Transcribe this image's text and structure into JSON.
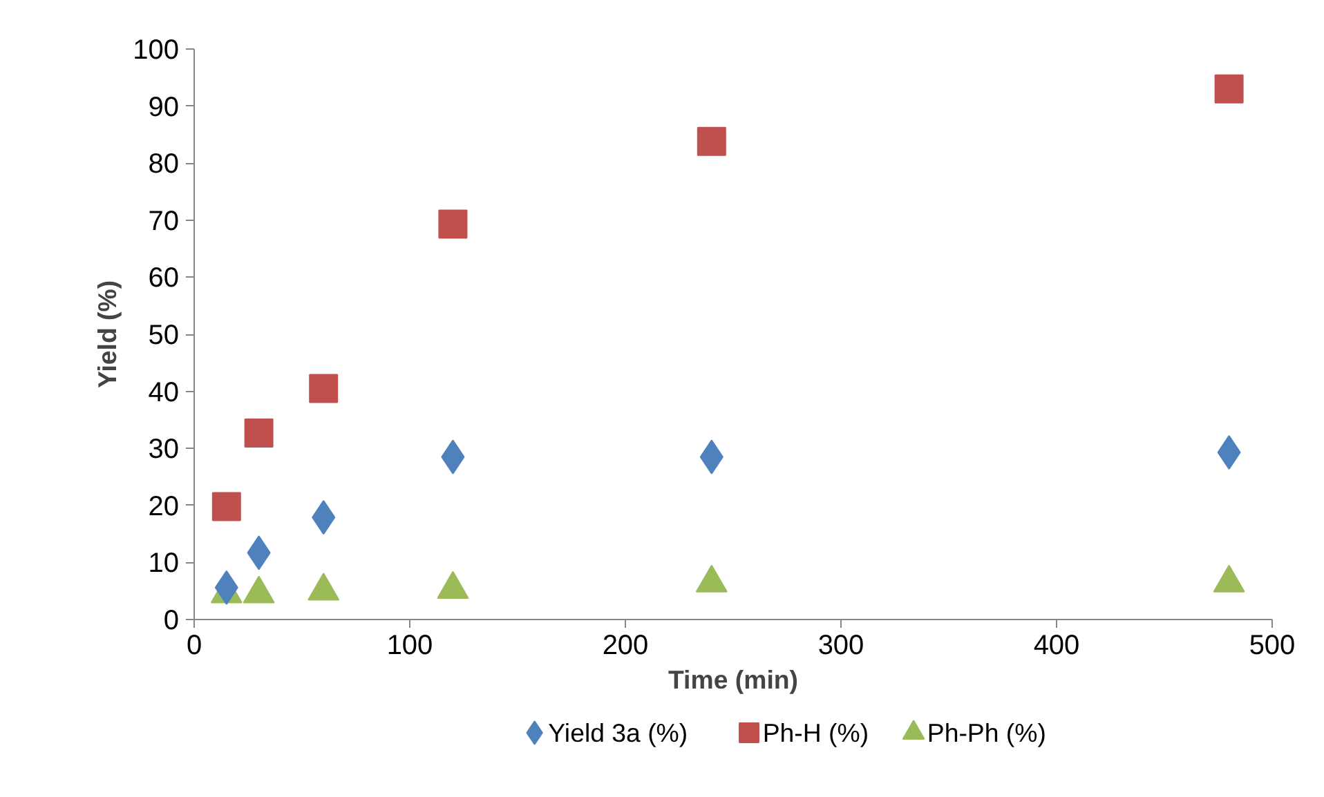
{
  "chart_data": {
    "type": "scatter",
    "xlabel": "Time (min)",
    "ylabel": "Yield (%)",
    "x": [
      15,
      30,
      60,
      120,
      240,
      480
    ],
    "series": [
      {
        "name": "Yield 3a (%)",
        "color": "#4f81bd",
        "marker": "diamond",
        "values": [
          5.6,
          11.7,
          17.9,
          28.5,
          28.5,
          29.3
        ]
      },
      {
        "name": "Ph-H (%)",
        "color": "#c0504d",
        "marker": "square",
        "values": [
          19.8,
          32.7,
          40.5,
          69.3,
          83.8,
          93.0
        ]
      },
      {
        "name": "Ph-Ph (%)",
        "color": "#9bbb59",
        "marker": "triangle",
        "values": [
          4.5,
          4.5,
          5.0,
          5.3,
          6.4,
          6.4
        ]
      }
    ],
    "xlim": [
      0,
      500
    ],
    "xticks": [
      0,
      100,
      200,
      300,
      400,
      500
    ],
    "ylim": [
      0,
      100
    ],
    "yticks": [
      0,
      10,
      20,
      30,
      40,
      50,
      60,
      70,
      80,
      90,
      100
    ],
    "grid": false,
    "legend": "bottom"
  }
}
